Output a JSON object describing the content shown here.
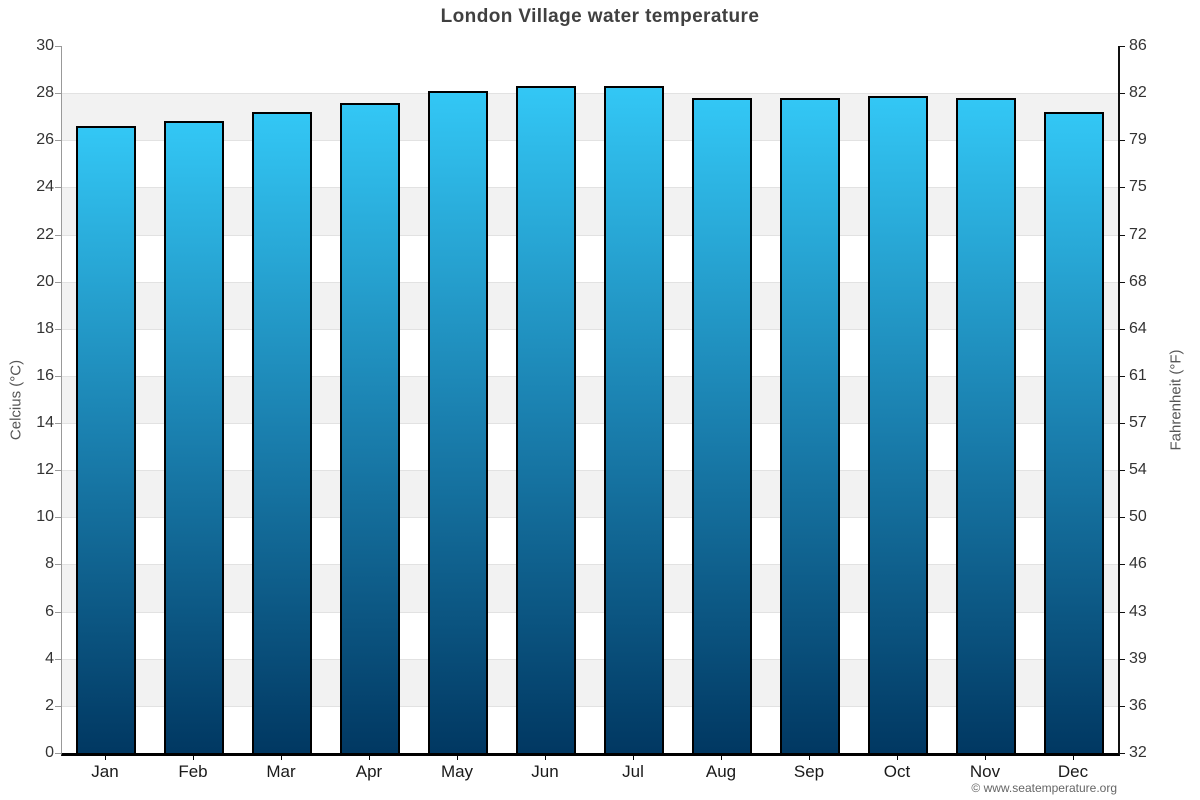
{
  "title": "London Village water temperature",
  "watermark": "© www.seatemperature.org",
  "axes": {
    "left_label": "Celcius (°C)",
    "right_label": "Fahrenheit (°F)"
  },
  "chart_data": {
    "type": "bar",
    "title": "London Village water temperature",
    "categories": [
      "Jan",
      "Feb",
      "Mar",
      "Apr",
      "May",
      "Jun",
      "Jul",
      "Aug",
      "Sep",
      "Oct",
      "Nov",
      "Dec"
    ],
    "values": [
      26.6,
      26.8,
      27.2,
      27.6,
      28.1,
      28.3,
      28.3,
      27.8,
      27.8,
      27.9,
      27.8,
      27.2
    ],
    "xlabel": "",
    "ylabel": "Celcius (°C)",
    "ylabel_right": "Fahrenheit (°F)",
    "ylim": [
      0,
      30
    ],
    "yticks": [
      30,
      28,
      26,
      24,
      22,
      20,
      18,
      16,
      14,
      12,
      10,
      8,
      6,
      4,
      2,
      0
    ],
    "yticks_right_labels": [
      "86",
      "82",
      "79",
      "75",
      "72",
      "68",
      "64",
      "61",
      "57",
      "54",
      "50",
      "46",
      "43",
      "39",
      "36",
      "32"
    ],
    "grid": "horizontal-bands",
    "legend": "none",
    "colors": {
      "bar_gradient_top": "#33c7f5",
      "bar_gradient_mid": "#1a7fae",
      "bar_gradient_bottom": "#013862",
      "bar_border": "#000000",
      "band_stripe": "#f2f2f2",
      "gridline": "#e2e2e2",
      "title_color": "#404040",
      "tick_color": "#333333",
      "watermark_color": "#666666"
    }
  }
}
